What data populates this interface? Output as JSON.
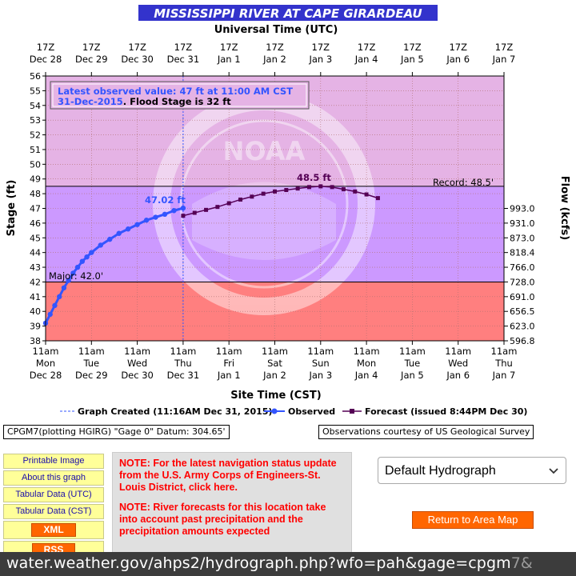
{
  "graph": {
    "title": "MISSISSIPPI RIVER AT CAPE GIRARDEAU",
    "top_axis_label": "Universal Time (UTC)",
    "bottom_axis_label": "Site Time (CST)",
    "left_axis_label": "Stage (ft)",
    "right_axis_label": "Flow (kcfs)",
    "latest_line1": "Latest observed value: 47 ft at 11:00 AM CST",
    "latest_date": "31-Dec-2015",
    "latest_flood": ". Flood Stage is 32  ft",
    "record_label": "Record: 48.5'",
    "major_label": "Major: 42.0'",
    "obs_last_label": "47.02 ft",
    "fcst_peak_label": "48.5 ft",
    "legend_created": "Graph Created (11:16AM Dec 31, 2015)",
    "legend_observed": "Observed",
    "legend_forecast": "Forecast (issued 8:44PM Dec 30)",
    "datum_text": "CPGM7(plotting HGIRG) \"Gage 0\" Datum: 304.65'",
    "courtesy_text": "Observations courtesy of US Geological Survey",
    "colors": {
      "title_bg": "#3333cc",
      "plot_upper": "#e5b3e5",
      "plot_mid": "#cc99ff",
      "plot_major": "#ff7f7f",
      "observed": "#3355ff",
      "forecast": "#550055",
      "grid": "#b07070"
    }
  },
  "chart_data": {
    "type": "line",
    "title": "MISSISSIPPI RIVER AT CAPE GIRARDEAU",
    "xlabel": "Site Time (CST)",
    "ylabel": "Stage (ft)",
    "y2label": "Flow (kcfs)",
    "ylim": [
      38,
      56
    ],
    "x_ticks_bottom": [
      [
        "11am",
        "Mon",
        "Dec 28"
      ],
      [
        "11am",
        "Tue",
        "Dec 29"
      ],
      [
        "11am",
        "Wed",
        "Dec 30"
      ],
      [
        "11am",
        "Thu",
        "Dec 31"
      ],
      [
        "11am",
        "Fri",
        "Jan 1"
      ],
      [
        "11am",
        "Sat",
        "Jan 2"
      ],
      [
        "11am",
        "Sun",
        "Jan 3"
      ],
      [
        "11am",
        "Mon",
        "Jan 4"
      ],
      [
        "11am",
        "Tue",
        "Jan 5"
      ],
      [
        "11am",
        "Wed",
        "Jan 6"
      ],
      [
        "11am",
        "Thu",
        "Jan 7"
      ]
    ],
    "x_ticks_top": [
      [
        "17Z",
        "Dec 28"
      ],
      [
        "17Z",
        "Dec 29"
      ],
      [
        "17Z",
        "Dec 30"
      ],
      [
        "17Z",
        "Dec 31"
      ],
      [
        "17Z",
        "Jan 1"
      ],
      [
        "17Z",
        "Jan 2"
      ],
      [
        "17Z",
        "Jan 3"
      ],
      [
        "17Z",
        "Jan 4"
      ],
      [
        "17Z",
        "Jan 5"
      ],
      [
        "17Z",
        "Jan 6"
      ],
      [
        "17Z",
        "Jan 7"
      ]
    ],
    "y_ticks": [
      38,
      39,
      40,
      41,
      42,
      43,
      44,
      45,
      46,
      47,
      48,
      49,
      50,
      51,
      52,
      53,
      54,
      55,
      56
    ],
    "flow_ticks": [
      {
        "stage": 38,
        "label": "596.8"
      },
      {
        "stage": 39,
        "label": "623.0"
      },
      {
        "stage": 40,
        "label": "656.5"
      },
      {
        "stage": 41,
        "label": "691.0"
      },
      {
        "stage": 42,
        "label": "728.0"
      },
      {
        "stage": 43,
        "label": "766.0"
      },
      {
        "stage": 44,
        "label": "818.4"
      },
      {
        "stage": 45,
        "label": "873.0"
      },
      {
        "stage": 46,
        "label": "931.0"
      },
      {
        "stage": 47,
        "label": "993.0"
      }
    ],
    "thresholds": {
      "major": 42.0,
      "record": 48.5
    },
    "series": [
      {
        "name": "Observed",
        "x_days": [
          0,
          0.1,
          0.2,
          0.3,
          0.4,
          0.5,
          0.6,
          0.7,
          0.8,
          0.9,
          1.0,
          1.2,
          1.4,
          1.6,
          1.8,
          2.0,
          2.2,
          2.4,
          2.6,
          2.8,
          3.0
        ],
        "values": [
          39.2,
          39.8,
          40.4,
          41.0,
          41.6,
          42.1,
          42.6,
          43.0,
          43.4,
          43.7,
          44.0,
          44.5,
          44.9,
          45.3,
          45.6,
          45.9,
          46.2,
          46.4,
          46.6,
          46.85,
          47.02
        ]
      },
      {
        "name": "Forecast",
        "x_days": [
          3.0,
          3.25,
          3.5,
          3.75,
          4.0,
          4.25,
          4.5,
          4.75,
          5.0,
          5.25,
          5.5,
          5.75,
          6.0,
          6.25,
          6.5,
          6.75,
          7.0,
          7.25
        ],
        "values": [
          46.5,
          46.7,
          46.9,
          47.1,
          47.35,
          47.6,
          47.8,
          48.0,
          48.15,
          48.25,
          48.35,
          48.45,
          48.5,
          48.45,
          48.3,
          48.15,
          47.95,
          47.7
        ]
      }
    ]
  },
  "links": {
    "printable": "Printable Image",
    "about": "About this graph",
    "tab_utc": "Tabular Data (UTC)",
    "tab_cst": "Tabular Data (CST)",
    "xml": "XML",
    "rss": "RSS"
  },
  "notes": {
    "nav": "NOTE: For the latest navigation status update from the U.S. Army Corps of Engineers-St. Louis District, click here.",
    "forecast": "NOTE: River forecasts for this location take into account past precipitation and the precipitation amounts expected"
  },
  "controls": {
    "select_value": "Default Hydrograph",
    "return_button": "Return to Area Map"
  },
  "browser": {
    "url_main": "water.weather.gov/ahps2/hydrograph.php?wfo=pah&gage=cpgm",
    "url_fade": "7&"
  }
}
